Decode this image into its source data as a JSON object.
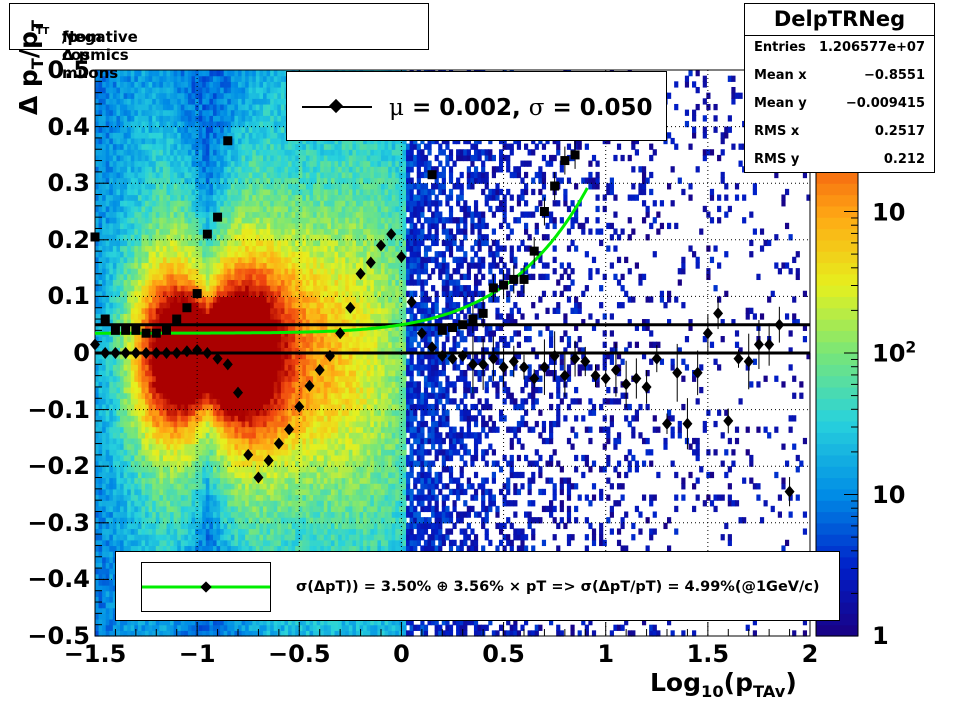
{
  "title": "Negative Δ p_T/p_T from cosmics muons",
  "title_parts": {
    "a": "Negative Δ p",
    "b": "T",
    "c": "/p",
    "d": "T",
    "e": " from cosmics muons"
  },
  "stats": {
    "name": "DelpTRNeg",
    "rows": [
      {
        "label": "Entries",
        "value": "1.206577e+07"
      },
      {
        "label": "Mean x",
        "value": "−0.8551"
      },
      {
        "label": "Mean y",
        "value": "−0.009415"
      },
      {
        "label": "RMS x",
        "value": "0.2517"
      },
      {
        "label": "RMS y",
        "value": "0.212"
      }
    ]
  },
  "legend_top": {
    "mu_sym": "μ",
    "mu_text": " =  0.002, ",
    "sigma_sym": "σ",
    "sigma_text": " =   0.050"
  },
  "legend_bottom": {
    "text": "σ(ΔpT)) =  3.50% ⊕  3.56% × pT => σ(ΔpT/pT) =  4.99%(@1GeV/c)"
  },
  "axes": {
    "xlabel_a": "Log",
    "xlabel_b": "10",
    "xlabel_c": "(p",
    "xlabel_d": "TAv",
    "xlabel_e": ")",
    "ylabel_a": "Δ p",
    "ylabel_b": "T",
    "ylabel_c": "/p",
    "ylabel_d": "T",
    "xticks": [
      "−1.5",
      "−1",
      "−0.5",
      "0",
      "0.5",
      "1",
      "1.5",
      "2"
    ],
    "yticks": [
      "−0.5",
      "−0.4",
      "−0.3",
      "−0.2",
      "−0.1",
      "0",
      "0.1",
      "0.2",
      "0.3",
      "0.4",
      "0.5"
    ],
    "zticks": [
      "1",
      "10",
      "10",
      "10"
    ],
    "z_exp": "2"
  },
  "colors": {
    "fit_line": "#00ee00",
    "markers": "#000000"
  },
  "chart_data": {
    "type": "heatmap",
    "x_range": [
      -1.5,
      2.0
    ],
    "y_range": [
      -0.5,
      0.5
    ],
    "z_scale": "log",
    "z_range": [
      1,
      10000
    ],
    "grid": true,
    "overlays": {
      "mean_points": {
        "x": [
          -1.5,
          -1.45,
          -1.4,
          -1.35,
          -1.3,
          -1.25,
          -1.2,
          -1.15,
          -1.1,
          -1.05,
          -1.0,
          -0.95,
          -0.9,
          -0.85,
          -0.8,
          -0.75,
          -0.7,
          -0.65,
          -0.6,
          -0.55,
          -0.5,
          -0.45,
          -0.4,
          -0.35,
          -0.3,
          -0.25,
          -0.2,
          -0.15,
          -0.1,
          -0.05,
          0.0,
          0.05,
          0.1,
          0.15,
          0.2,
          0.25,
          0.3,
          0.35,
          0.4,
          0.45,
          0.5,
          0.55,
          0.6,
          0.65,
          0.7,
          0.75,
          0.8,
          0.85,
          0.9,
          0.95,
          1.0,
          1.05,
          1.1,
          1.15,
          1.2,
          1.25,
          1.3,
          1.35,
          1.4,
          1.45,
          1.5,
          1.55,
          1.6,
          1.65,
          1.7,
          1.75,
          1.8,
          1.85
        ],
        "y": [
          0.015,
          0.0,
          0.0,
          0.0,
          0.0,
          0.0,
          0.0,
          0.0,
          0.0,
          0.003,
          0.005,
          0.0,
          -0.01,
          -0.02,
          -0.07,
          -0.18,
          -0.22,
          -0.19,
          -0.16,
          -0.135,
          -0.095,
          -0.058,
          -0.03,
          -0.005,
          0.035,
          0.08,
          0.14,
          0.16,
          0.19,
          0.21,
          0.17,
          0.09,
          0.035,
          0.01,
          -0.005,
          -0.01,
          -0.005,
          -0.02,
          -0.02,
          -0.01,
          -0.025,
          -0.015,
          -0.025,
          -0.045,
          -0.025,
          -0.005,
          -0.04,
          -0.01,
          -0.015,
          -0.04,
          -0.045,
          -0.03,
          -0.055,
          -0.045,
          -0.06,
          -0.01,
          -0.125,
          -0.035,
          -0.125,
          -0.035,
          0.035,
          0.07,
          -0.12,
          -0.01,
          -0.015,
          0.015,
          0.015,
          0.05
        ],
        "y_extra": [
          {
            "x": 1.9,
            "y": -0.245
          }
        ]
      },
      "sigma_points": {
        "x": [
          -1.5,
          -1.45,
          -1.4,
          -1.35,
          -1.3,
          -1.25,
          -1.2,
          -1.15,
          -1.1,
          -1.05,
          -1.0,
          -0.95,
          -0.9,
          -0.85,
          0.15,
          0.2,
          0.25,
          0.3,
          0.35,
          0.4,
          0.45,
          0.5,
          0.55,
          0.6,
          0.65,
          0.7,
          0.75,
          0.8,
          0.85
        ],
        "y": [
          0.205,
          0.06,
          0.04,
          0.04,
          0.04,
          0.035,
          0.035,
          0.04,
          0.06,
          0.08,
          0.105,
          0.21,
          0.24,
          0.375,
          0.315,
          0.04,
          0.045,
          0.05,
          0.06,
          0.07,
          0.115,
          0.12,
          0.13,
          0.13,
          0.18,
          0.25,
          0.295,
          0.34,
          0.35
        ]
      },
      "fit_curve": {
        "sigma0": 0.035,
        "slope": 0.0356,
        "x_range": [
          -1.5,
          0.92
        ]
      },
      "hlines": [
        0.0,
        0.05
      ]
    }
  }
}
